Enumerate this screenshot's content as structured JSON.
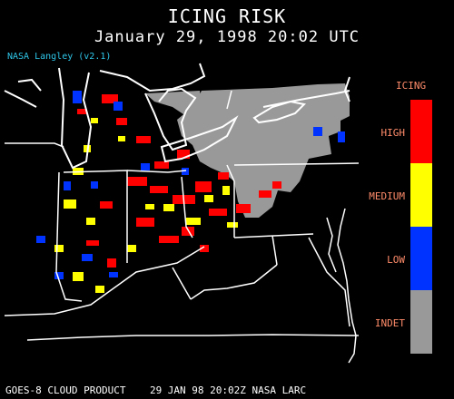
{
  "header": {
    "title": "ICING RISK",
    "subtitle": "January 29, 1998 20:02 UTC",
    "version": "NASA Langley (v2.1)"
  },
  "legend": {
    "title": "ICING",
    "items": [
      {
        "label": "HIGH",
        "color": "#ff0000"
      },
      {
        "label": "MEDIUM",
        "color": "#ffff00"
      },
      {
        "label": "LOW",
        "color": "#0033ff"
      },
      {
        "label": "INDET",
        "color": "#999999"
      }
    ]
  },
  "footer": {
    "text": "GOES-8 CLOUD PRODUCT    29 JAN 98 20:02Z NASA LARC"
  },
  "colors": {
    "background": "#000000",
    "indeterminate": "#999999",
    "high": "#ff0000",
    "medium": "#ffff00",
    "low": "#0033ff",
    "boundaries": "#ffffff",
    "legend_text": "#ff8c6a",
    "version_text": "#2ec4e6"
  }
}
